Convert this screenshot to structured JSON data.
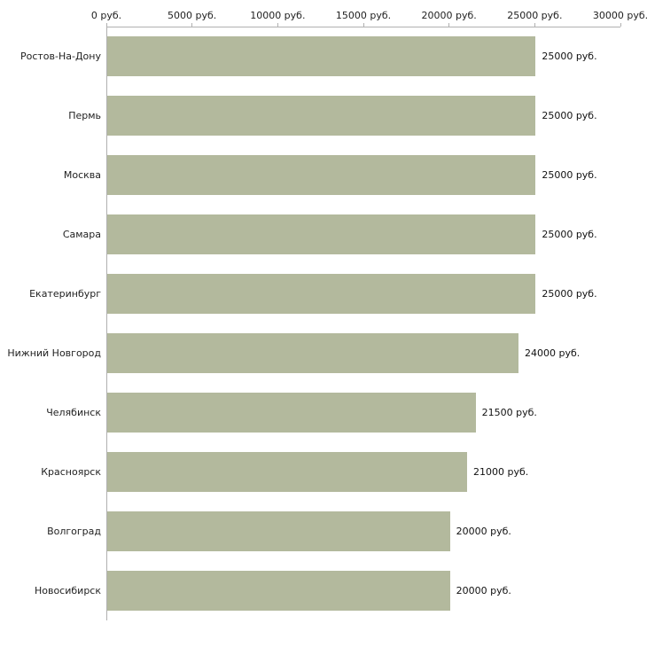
{
  "chart_data": {
    "type": "bar",
    "orientation": "horizontal",
    "title": "",
    "xlabel": "",
    "ylabel": "",
    "xlim": [
      0,
      30000
    ],
    "grid": false,
    "legend": false,
    "categories": [
      "Ростов-На-Дону",
      "Пермь",
      "Москва",
      "Самара",
      "Екатеринбург",
      "Нижний Новгород",
      "Челябинск",
      "Красноярск",
      "Волгоград",
      "Новосибирск"
    ],
    "values": [
      25000,
      25000,
      25000,
      25000,
      25000,
      24000,
      21500,
      21000,
      20000,
      20000
    ],
    "value_labels": [
      "25000 руб.",
      "25000 руб.",
      "25000 руб.",
      "25000 руб.",
      "25000 руб.",
      "24000 руб.",
      "21500 руб.",
      "21000 руб.",
      "20000 руб.",
      "20000 руб."
    ],
    "x_ticks": [
      0,
      5000,
      10000,
      15000,
      20000,
      25000,
      30000
    ],
    "x_tick_labels": [
      "0 руб.",
      "5000 руб.",
      "10000 руб.",
      "15000 руб.",
      "20000 руб.",
      "25000 руб.",
      "30000 руб."
    ],
    "bar_color": "#b3b99d",
    "axis_color": "#b0b0b0",
    "text_color": "#222222"
  }
}
